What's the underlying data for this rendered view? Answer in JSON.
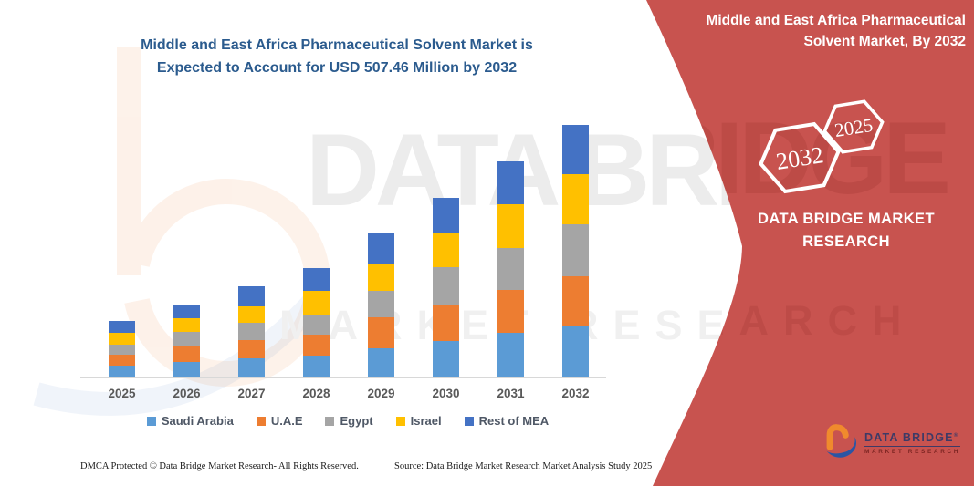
{
  "chart": {
    "title_line1": "Middle and East Africa Pharmaceutical Solvent Market is",
    "title_line2": "Expected to Account for USD 507.46 Million by 2032",
    "title_color": "#2B5B8E"
  },
  "chart_data": {
    "type": "bar",
    "stacked": true,
    "title": "Middle and East Africa Pharmaceutical Solvent Market is Expected to Account for USD 507.46 Million by 2032",
    "unit": "USD Million",
    "categories": [
      "2025",
      "2026",
      "2027",
      "2028",
      "2029",
      "2030",
      "2031",
      "2032"
    ],
    "series": [
      {
        "name": "Saudi Arabia",
        "color": "#5B9BD5",
        "values": [
          22,
          29,
          37,
          43,
          57,
          72,
          88,
          103
        ]
      },
      {
        "name": "U.A.E",
        "color": "#ED7D31",
        "values": [
          22,
          32,
          37,
          42,
          63,
          71,
          86,
          99
        ]
      },
      {
        "name": "Egypt",
        "color": "#A5A5A5",
        "values": [
          20,
          29,
          35,
          41,
          53,
          77,
          86,
          105
        ]
      },
      {
        "name": "Israel",
        "color": "#FFC000",
        "values": [
          24,
          28,
          33,
          47,
          55,
          70,
          88,
          101
        ]
      },
      {
        "name": "Rest of MEA",
        "color": "#4472C4",
        "values": [
          24,
          27,
          40,
          45,
          63,
          70,
          86,
          99.46
        ]
      }
    ],
    "totals": [
      112,
      145,
      182,
      218,
      291,
      360,
      434,
      507.46
    ],
    "ylim": [
      0,
      520
    ],
    "gridlines": false,
    "legend_position": "bottom",
    "xlabel": "",
    "ylabel": ""
  },
  "banner": {
    "color": "#C8534F",
    "title_line1": "Middle and East Africa Pharmaceutical",
    "title_line2": "Solvent Market, By 2032",
    "hexagons": [
      {
        "label": "2032"
      },
      {
        "label": "2025"
      }
    ],
    "brand_line1": "DATA BRIDGE MARKET",
    "brand_line2": "RESEARCH"
  },
  "logo": {
    "name": "DATA BRIDGE",
    "reg": "®",
    "sub": "MARKET RESEARCH"
  },
  "watermark": {
    "line1": "DATA BRIDGE",
    "line2": "MARKET RESEARCH"
  },
  "footer": {
    "dmca": "DMCA Protected © Data Bridge Market Research-  All Rights Reserved.",
    "source": "Source: Data Bridge Market Research  Market Analysis Study 2025"
  }
}
